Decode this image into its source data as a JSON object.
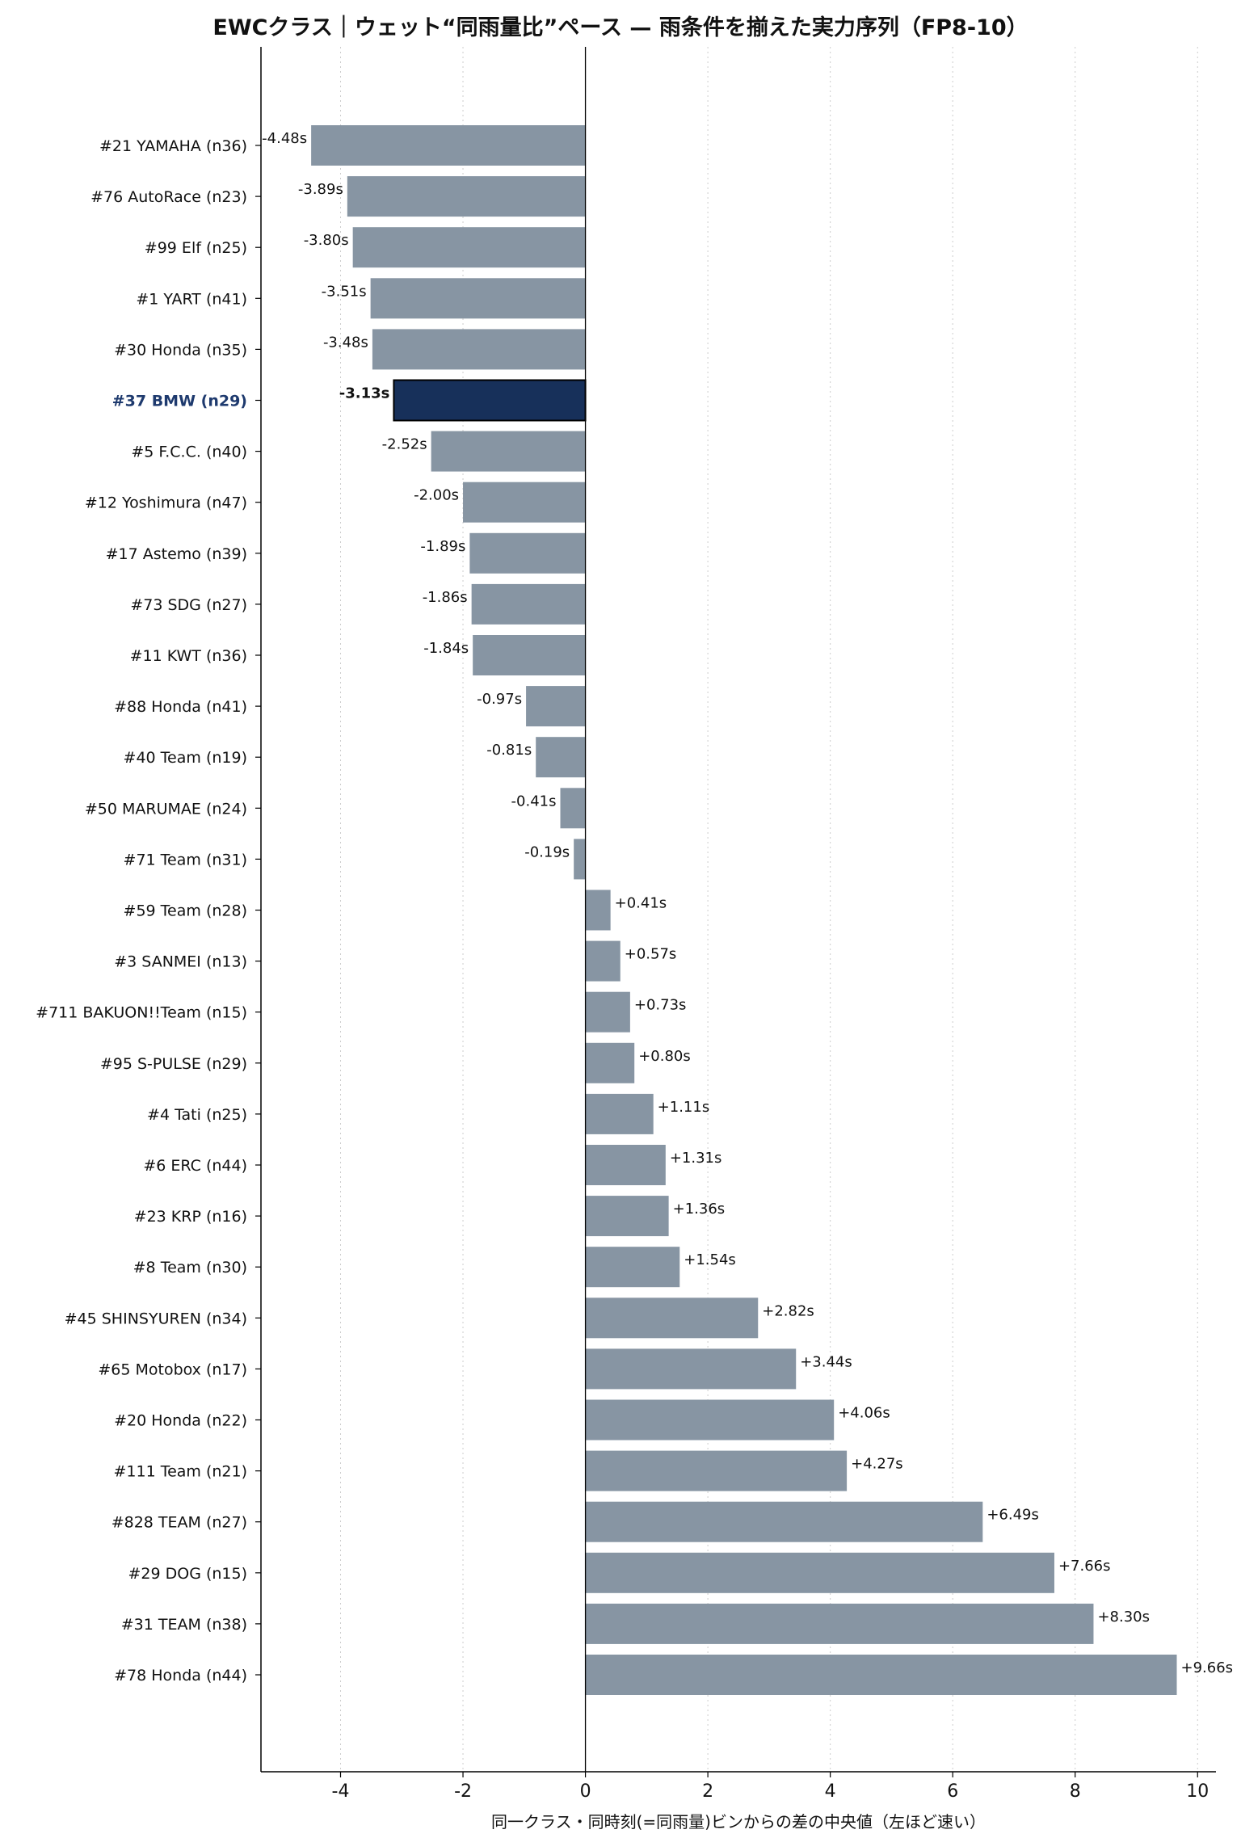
{
  "chart_data": {
    "type": "bar",
    "orientation": "horizontal",
    "title": "EWCクラス｜ウェット“同雨量比”ペース — 雨条件を揃えた実力序列（FP8-10）",
    "xlabel": "同一クラス・同時刻(=同雨量)ビンからの差の中央値（左ほど速い）",
    "ylabel": "",
    "xlim": [
      -5.3,
      10.3
    ],
    "xticks": [
      -4,
      -2,
      0,
      2,
      4,
      6,
      8,
      10
    ],
    "grid": "vertical-dotted",
    "legend": "none",
    "highlight_category": "#37 BMW (n29)",
    "colors": {
      "bar": "#8795a3",
      "highlight_bar": "#17305a",
      "highlight_label": "#1e3a6e",
      "axis": "#000000",
      "grid": "#cccccc"
    },
    "categories": [
      "#21 YAMAHA (n36)",
      "#76 AutoRace (n23)",
      "#99 Elf (n25)",
      "#1 YART (n41)",
      "#30 Honda (n35)",
      "#37 BMW (n29)",
      "#5 F.C.C. (n40)",
      "#12 Yoshimura (n47)",
      "#17 Astemo (n39)",
      "#73 SDG (n27)",
      "#11 KWT (n36)",
      "#88 Honda (n41)",
      "#40 Team (n19)",
      "#50 MARUMAE (n24)",
      "#71 Team (n31)",
      "#59 Team (n28)",
      "#3 SANMEI (n13)",
      "#711 BAKUON!!Team (n15)",
      "#95 S-PULSE (n29)",
      "#4 Tati (n25)",
      "#6 ERC (n44)",
      "#23 KRP (n16)",
      "#8 Team (n30)",
      "#45 SHINSYUREN (n34)",
      "#65 Motobox (n17)",
      "#20 Honda (n22)",
      "#111 Team (n21)",
      "#828 TEAM (n27)",
      "#29 DOG (n15)",
      "#31 TEAM (n38)",
      "#78 Honda (n44)"
    ],
    "values": [
      -4.48,
      -3.89,
      -3.8,
      -3.51,
      -3.48,
      -3.13,
      -2.52,
      -2.0,
      -1.89,
      -1.86,
      -1.84,
      -0.97,
      -0.81,
      -0.41,
      -0.19,
      0.41,
      0.57,
      0.73,
      0.8,
      1.11,
      1.31,
      1.36,
      1.54,
      2.82,
      3.44,
      4.06,
      4.27,
      6.49,
      7.66,
      8.3,
      9.66
    ],
    "data_labels": [
      "-4.48s",
      "-3.89s",
      "-3.80s",
      "-3.51s",
      "-3.48s",
      "-3.13s",
      "-2.52s",
      "-2.00s",
      "-1.89s",
      "-1.86s",
      "-1.84s",
      "-0.97s",
      "-0.81s",
      "-0.41s",
      "-0.19s",
      "+0.41s",
      "+0.57s",
      "+0.73s",
      "+0.80s",
      "+1.11s",
      "+1.31s",
      "+1.36s",
      "+1.54s",
      "+2.82s",
      "+3.44s",
      "+4.06s",
      "+4.27s",
      "+6.49s",
      "+7.66s",
      "+8.30s",
      "+9.66s"
    ]
  }
}
